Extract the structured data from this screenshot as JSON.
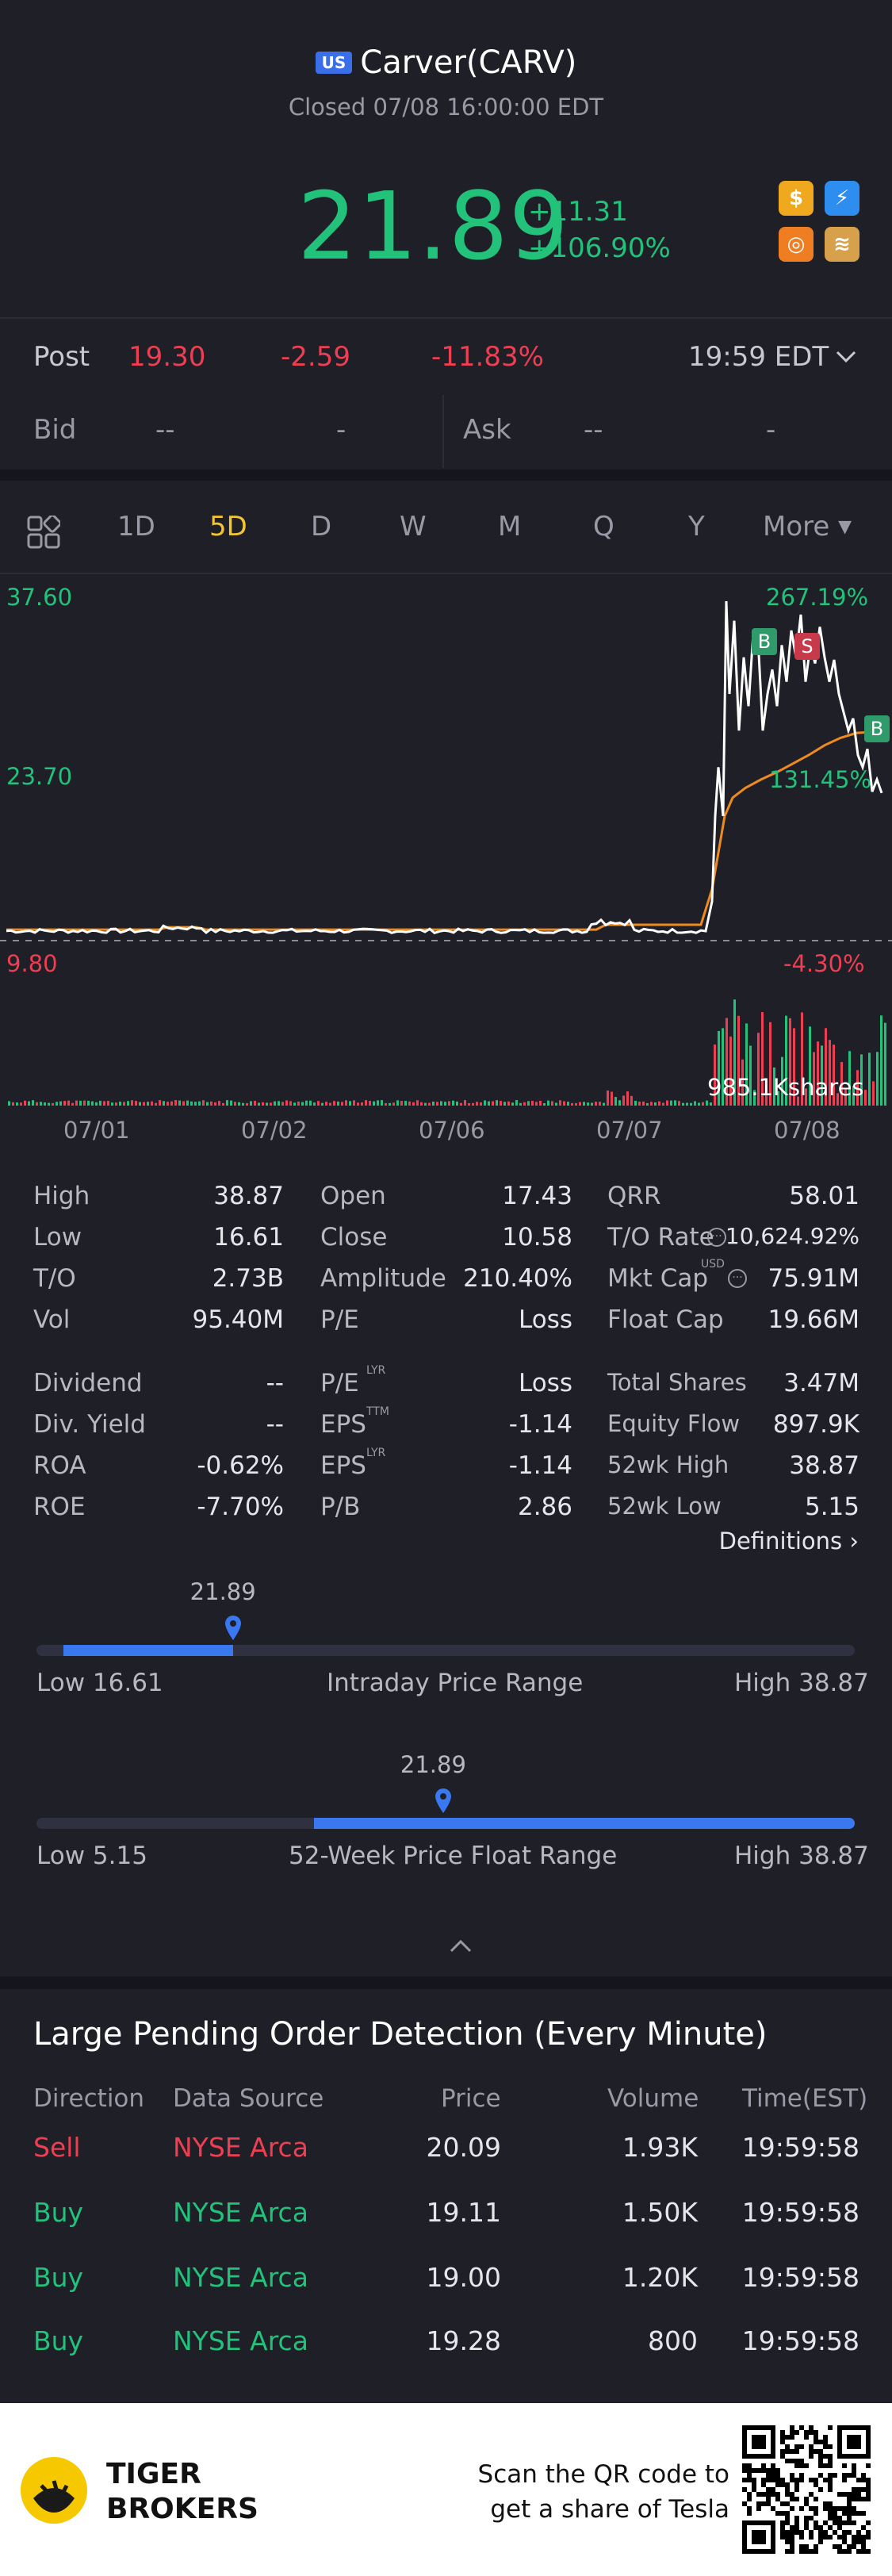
{
  "header": {
    "market_badge": "US",
    "title": "Carver(CARV)",
    "status": "Closed 07/08 16:00:00 EDT",
    "price": "21.89",
    "change": "+11.31",
    "change_pct": "+106.90%"
  },
  "post": {
    "label": "Post",
    "price": "19.30",
    "change": "-2.59",
    "change_pct": "-11.83%",
    "time": "19:59 EDT"
  },
  "quote": {
    "bid_label": "Bid",
    "bid_price": "--",
    "bid_size": "-",
    "ask_label": "Ask",
    "ask_price": "--",
    "ask_size": "-"
  },
  "tabs": [
    "1D",
    "5D",
    "D",
    "W",
    "M",
    "Q",
    "Y",
    "More"
  ],
  "active_tab": "5D",
  "chart_labels": {
    "y_high": "37.60",
    "y_mid": "23.70",
    "y_low": "9.80",
    "pct_high": "267.19%",
    "pct_mid": "131.45%",
    "pct_low": "-4.30%",
    "volume": "985.1Kshares",
    "dates": [
      "07/01",
      "07/02",
      "07/06",
      "07/07",
      "07/08"
    ],
    "marker_b": "B",
    "marker_s": "S"
  },
  "chart_data": {
    "type": "line",
    "x": [
      "07/01",
      "07/02",
      "07/06",
      "07/07",
      "07/08"
    ],
    "ylim": [
      9.8,
      37.6
    ],
    "series": [
      {
        "values": [
          10.6,
          10.9,
          10.5,
          10.7,
          21.89
        ]
      }
    ]
  },
  "stats": {
    "col1": [
      [
        "High",
        "38.87"
      ],
      [
        "Low",
        "16.61"
      ],
      [
        "T/O",
        "2.73B"
      ],
      [
        "Vol",
        "95.40M"
      ],
      [
        "Dividend",
        "--"
      ],
      [
        "Div. Yield",
        "--"
      ],
      [
        "ROA",
        "-0.62%"
      ],
      [
        "ROE",
        "-7.70%"
      ]
    ],
    "col2": [
      [
        "Open",
        "17.43"
      ],
      [
        "Close",
        "10.58"
      ],
      [
        "Amplitude",
        "210.40%"
      ],
      [
        "P/E",
        "Loss"
      ],
      [
        "P/E",
        "Loss"
      ],
      [
        "EPS",
        "-1.14"
      ],
      [
        "EPS",
        "-1.14"
      ],
      [
        "P/B",
        "2.86"
      ]
    ],
    "col2_sup": [
      "",
      "",
      "",
      "",
      "LYR",
      "TTM",
      "LYR",
      ""
    ],
    "col3": [
      [
        "QRR",
        "58.01"
      ],
      [
        "T/O Rate",
        "10,624.92%"
      ],
      [
        "Mkt Cap",
        "75.91M"
      ],
      [
        "Float Cap",
        "19.66M"
      ],
      [
        "Total Shares",
        "3.47M"
      ],
      [
        "Equity Flow",
        "897.9K"
      ],
      [
        "52wk High",
        "38.87"
      ],
      [
        "52wk Low",
        "5.15"
      ]
    ],
    "mktcap_currency": "USD",
    "definitions": "Definitions"
  },
  "intraday_range": {
    "current": "21.89",
    "low": "Low 16.61",
    "label": "Intraday Price Range",
    "high": "High 38.87",
    "position": 0.24
  },
  "week52_range": {
    "current": "21.89",
    "low": "Low 5.15",
    "label": "52-Week Price Float Range",
    "high": "High 38.87",
    "position": 0.497
  },
  "orders": {
    "title": "Large Pending Order Detection (Every Minute)",
    "headers": [
      "Direction",
      "Data Source",
      "Price",
      "Volume",
      "Time(EST)"
    ],
    "rows": [
      [
        "Sell",
        "NYSE Arca",
        "20.09",
        "1.93K",
        "19:59:58"
      ],
      [
        "Buy",
        "NYSE Arca",
        "19.11",
        "1.50K",
        "19:59:58"
      ],
      [
        "Buy",
        "NYSE Arca",
        "19.00",
        "1.20K",
        "19:59:58"
      ],
      [
        "Buy",
        "NYSE Arca",
        "19.28",
        "800",
        "19:59:58"
      ]
    ]
  },
  "footer": {
    "brand_line1": "TIGER",
    "brand_line2": "BROKERS",
    "qr_line1": "Scan the QR code to",
    "qr_line2": "get a share of Tesla"
  },
  "colors": {
    "up": "#22c27a",
    "down": "#ee3f52",
    "accent": "#3a78f0",
    "tab_active": "#f5c531"
  }
}
